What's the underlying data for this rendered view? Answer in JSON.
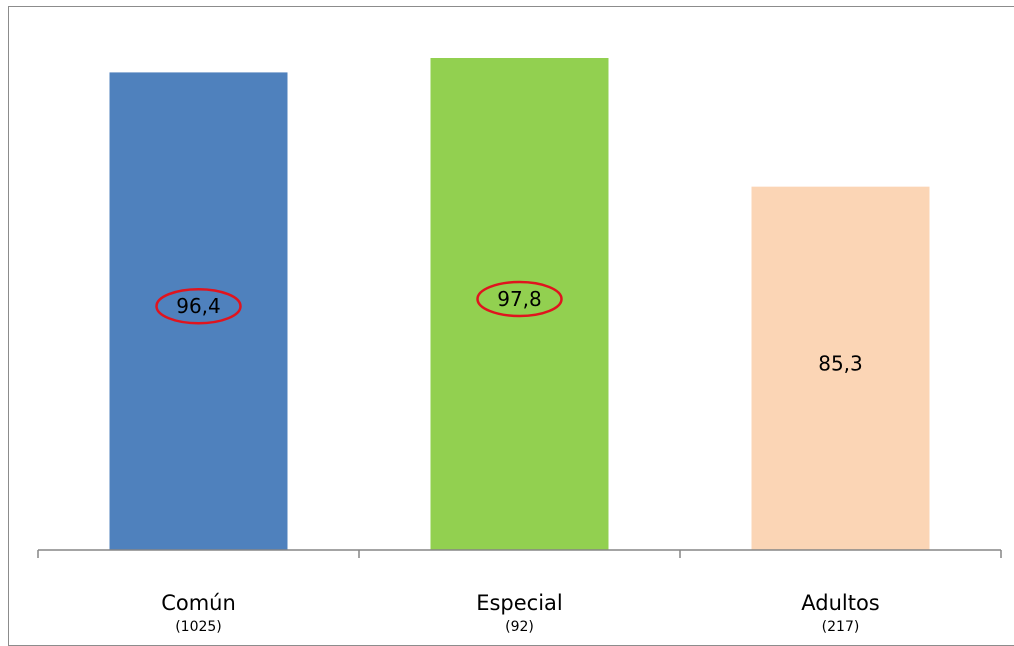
{
  "chart_data": {
    "type": "bar",
    "categories": [
      "Común",
      "Especial",
      "Adultos"
    ],
    "category_counts": [
      "(1025)",
      "(92)",
      "(217)"
    ],
    "values": [
      96.4,
      97.8,
      85.3
    ],
    "value_labels": [
      "96,4",
      "97,8",
      "85,3"
    ],
    "colors": [
      "#4f81bd",
      "#92d050",
      "#fbd5b5"
    ],
    "highlighted": [
      true,
      true,
      false
    ],
    "highlight_color": "#e0141e",
    "ylim": [
      50,
      100
    ],
    "grid": false,
    "title": "",
    "xlabel": "",
    "ylabel": ""
  }
}
